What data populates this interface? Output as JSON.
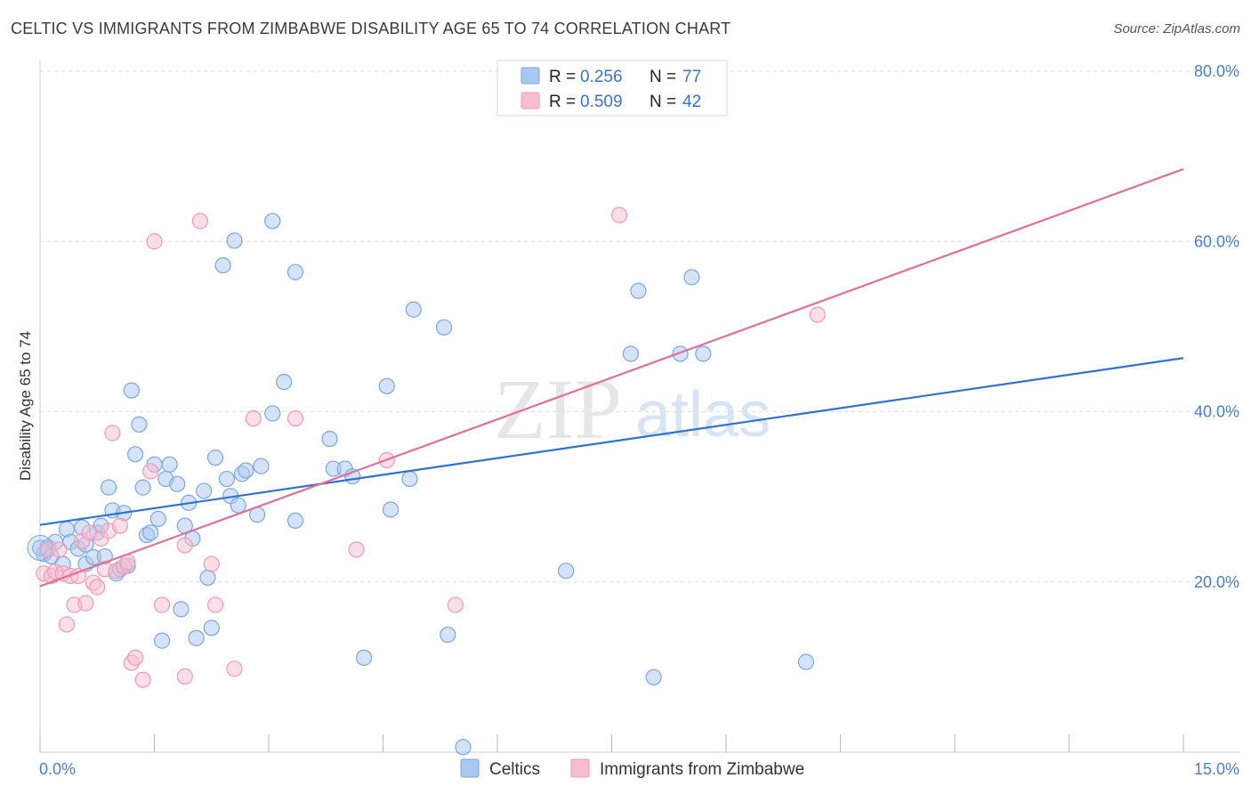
{
  "title": "CELTIC VS IMMIGRANTS FROM ZIMBABWE DISABILITY AGE 65 TO 74 CORRELATION CHART",
  "source": "Source: ZipAtlas.com",
  "watermark": {
    "zip": "ZIP",
    "atlas": "atlas"
  },
  "colors": {
    "blue_fill": "#a9c8ef",
    "blue_stroke": "#7aa7e0",
    "blue_line": "#2f72d0",
    "pink_fill": "#f7bdd0",
    "pink_stroke": "#ee9ab5",
    "pink_line": "#e0709a",
    "grid": "#dddddd",
    "tick_text": "#4a7fcb"
  },
  "legend": {
    "rows": [
      {
        "r_label": "R =",
        "r_value": "0.256",
        "n_label": "N =",
        "n_value": "77"
      },
      {
        "r_label": "R =",
        "r_value": "0.509",
        "n_label": "N =",
        "n_value": "42"
      }
    ]
  },
  "chart_data": {
    "type": "scatter",
    "title": "CELTIC VS IMMIGRANTS FROM ZIMBABWE DISABILITY AGE 65 TO 74 CORRELATION CHART",
    "xlabel": "",
    "ylabel": "Disability Age 65 to 74",
    "xlim": [
      0,
      15
    ],
    "ylim": [
      0,
      80
    ],
    "x_tick_labels": [
      "0.0%",
      "15.0%"
    ],
    "y_ticks": [
      20,
      40,
      60,
      80
    ],
    "y_tick_labels": [
      "20.0%",
      "40.0%",
      "60.0%",
      "80.0%"
    ],
    "grid": true,
    "legend_position": "top-center",
    "series": [
      {
        "name": "Celtics",
        "color": "#a9c8ef",
        "r": 0.256,
        "n": 77,
        "trend": {
          "x": [
            0,
            15
          ],
          "y": [
            26.7,
            46.3
          ]
        },
        "points": [
          [
            0.05,
            23.3
          ],
          [
            0.1,
            24.1
          ],
          [
            0.15,
            23.0
          ],
          [
            0.2,
            24.7
          ],
          [
            0.3,
            22.1
          ],
          [
            0.35,
            26.2
          ],
          [
            0.4,
            24.7
          ],
          [
            0.5,
            23.9
          ],
          [
            0.55,
            26.4
          ],
          [
            0.6,
            24.4
          ],
          [
            0.6,
            22.1
          ],
          [
            0.7,
            22.9
          ],
          [
            0.75,
            25.8
          ],
          [
            0.8,
            26.6
          ],
          [
            0.85,
            23.0
          ],
          [
            0.9,
            31.1
          ],
          [
            0.95,
            28.4
          ],
          [
            1.0,
            21.0
          ],
          [
            1.05,
            21.5
          ],
          [
            1.1,
            28.1
          ],
          [
            1.15,
            21.9
          ],
          [
            1.2,
            42.5
          ],
          [
            1.25,
            35.0
          ],
          [
            1.3,
            38.5
          ],
          [
            1.35,
            31.1
          ],
          [
            1.4,
            25.5
          ],
          [
            1.45,
            25.8
          ],
          [
            1.5,
            33.8
          ],
          [
            1.55,
            27.4
          ],
          [
            1.6,
            13.1
          ],
          [
            1.65,
            32.1
          ],
          [
            1.7,
            33.8
          ],
          [
            1.8,
            31.5
          ],
          [
            1.85,
            16.8
          ],
          [
            1.9,
            26.6
          ],
          [
            1.95,
            29.3
          ],
          [
            2.0,
            25.1
          ],
          [
            2.05,
            13.4
          ],
          [
            2.15,
            30.7
          ],
          [
            2.2,
            20.5
          ],
          [
            2.25,
            14.6
          ],
          [
            2.3,
            34.6
          ],
          [
            2.4,
            57.2
          ],
          [
            2.45,
            32.1
          ],
          [
            2.5,
            30.1
          ],
          [
            2.55,
            60.1
          ],
          [
            2.6,
            29.0
          ],
          [
            2.65,
            32.7
          ],
          [
            2.7,
            33.1
          ],
          [
            2.85,
            27.9
          ],
          [
            2.9,
            33.6
          ],
          [
            3.05,
            39.8
          ],
          [
            3.05,
            62.4
          ],
          [
            3.2,
            43.5
          ],
          [
            3.35,
            56.4
          ],
          [
            3.35,
            27.2
          ],
          [
            3.8,
            36.8
          ],
          [
            3.85,
            33.3
          ],
          [
            4.0,
            33.3
          ],
          [
            4.1,
            32.4
          ],
          [
            4.25,
            11.1
          ],
          [
            4.55,
            43.0
          ],
          [
            4.6,
            28.5
          ],
          [
            4.85,
            32.1
          ],
          [
            4.9,
            52.0
          ],
          [
            5.3,
            49.9
          ],
          [
            5.35,
            13.8
          ],
          [
            5.55,
            0.6
          ],
          [
            6.9,
            21.3
          ],
          [
            7.75,
            46.8
          ],
          [
            7.85,
            54.2
          ],
          [
            8.05,
            8.8
          ],
          [
            8.4,
            46.8
          ],
          [
            8.55,
            55.8
          ],
          [
            8.7,
            46.8
          ],
          [
            10.05,
            10.6
          ],
          [
            0.0,
            24.0
          ]
        ]
      },
      {
        "name": "Immigrants from Zimbabwe",
        "color": "#f7bdd0",
        "r": 0.509,
        "n": 42,
        "trend": {
          "x": [
            0,
            15
          ],
          "y": [
            19.5,
            68.5
          ]
        },
        "points": [
          [
            0.05,
            21.0
          ],
          [
            0.1,
            23.8
          ],
          [
            0.15,
            20.7
          ],
          [
            0.2,
            21.2
          ],
          [
            0.25,
            23.8
          ],
          [
            0.3,
            21.0
          ],
          [
            0.35,
            15.0
          ],
          [
            0.4,
            20.7
          ],
          [
            0.45,
            17.3
          ],
          [
            0.5,
            20.7
          ],
          [
            0.55,
            24.8
          ],
          [
            0.6,
            17.5
          ],
          [
            0.65,
            25.8
          ],
          [
            0.7,
            19.9
          ],
          [
            0.75,
            19.4
          ],
          [
            0.8,
            25.1
          ],
          [
            0.85,
            21.5
          ],
          [
            0.9,
            26.0
          ],
          [
            0.95,
            37.5
          ],
          [
            1.0,
            21.3
          ],
          [
            1.05,
            26.6
          ],
          [
            1.1,
            21.8
          ],
          [
            1.15,
            22.3
          ],
          [
            1.2,
            10.5
          ],
          [
            1.25,
            11.1
          ],
          [
            1.35,
            8.5
          ],
          [
            1.45,
            33.0
          ],
          [
            1.5,
            60.0
          ],
          [
            1.6,
            17.3
          ],
          [
            1.9,
            8.9
          ],
          [
            1.9,
            24.3
          ],
          [
            2.1,
            62.4
          ],
          [
            2.25,
            22.1
          ],
          [
            2.3,
            17.3
          ],
          [
            2.55,
            9.8
          ],
          [
            2.8,
            39.2
          ],
          [
            3.35,
            39.2
          ],
          [
            4.15,
            23.8
          ],
          [
            4.55,
            34.3
          ],
          [
            5.45,
            17.3
          ],
          [
            7.6,
            63.1
          ],
          [
            10.2,
            51.4
          ]
        ]
      }
    ]
  },
  "bottom_legend": {
    "items": [
      "Celtics",
      "Immigrants from Zimbabwe"
    ]
  }
}
